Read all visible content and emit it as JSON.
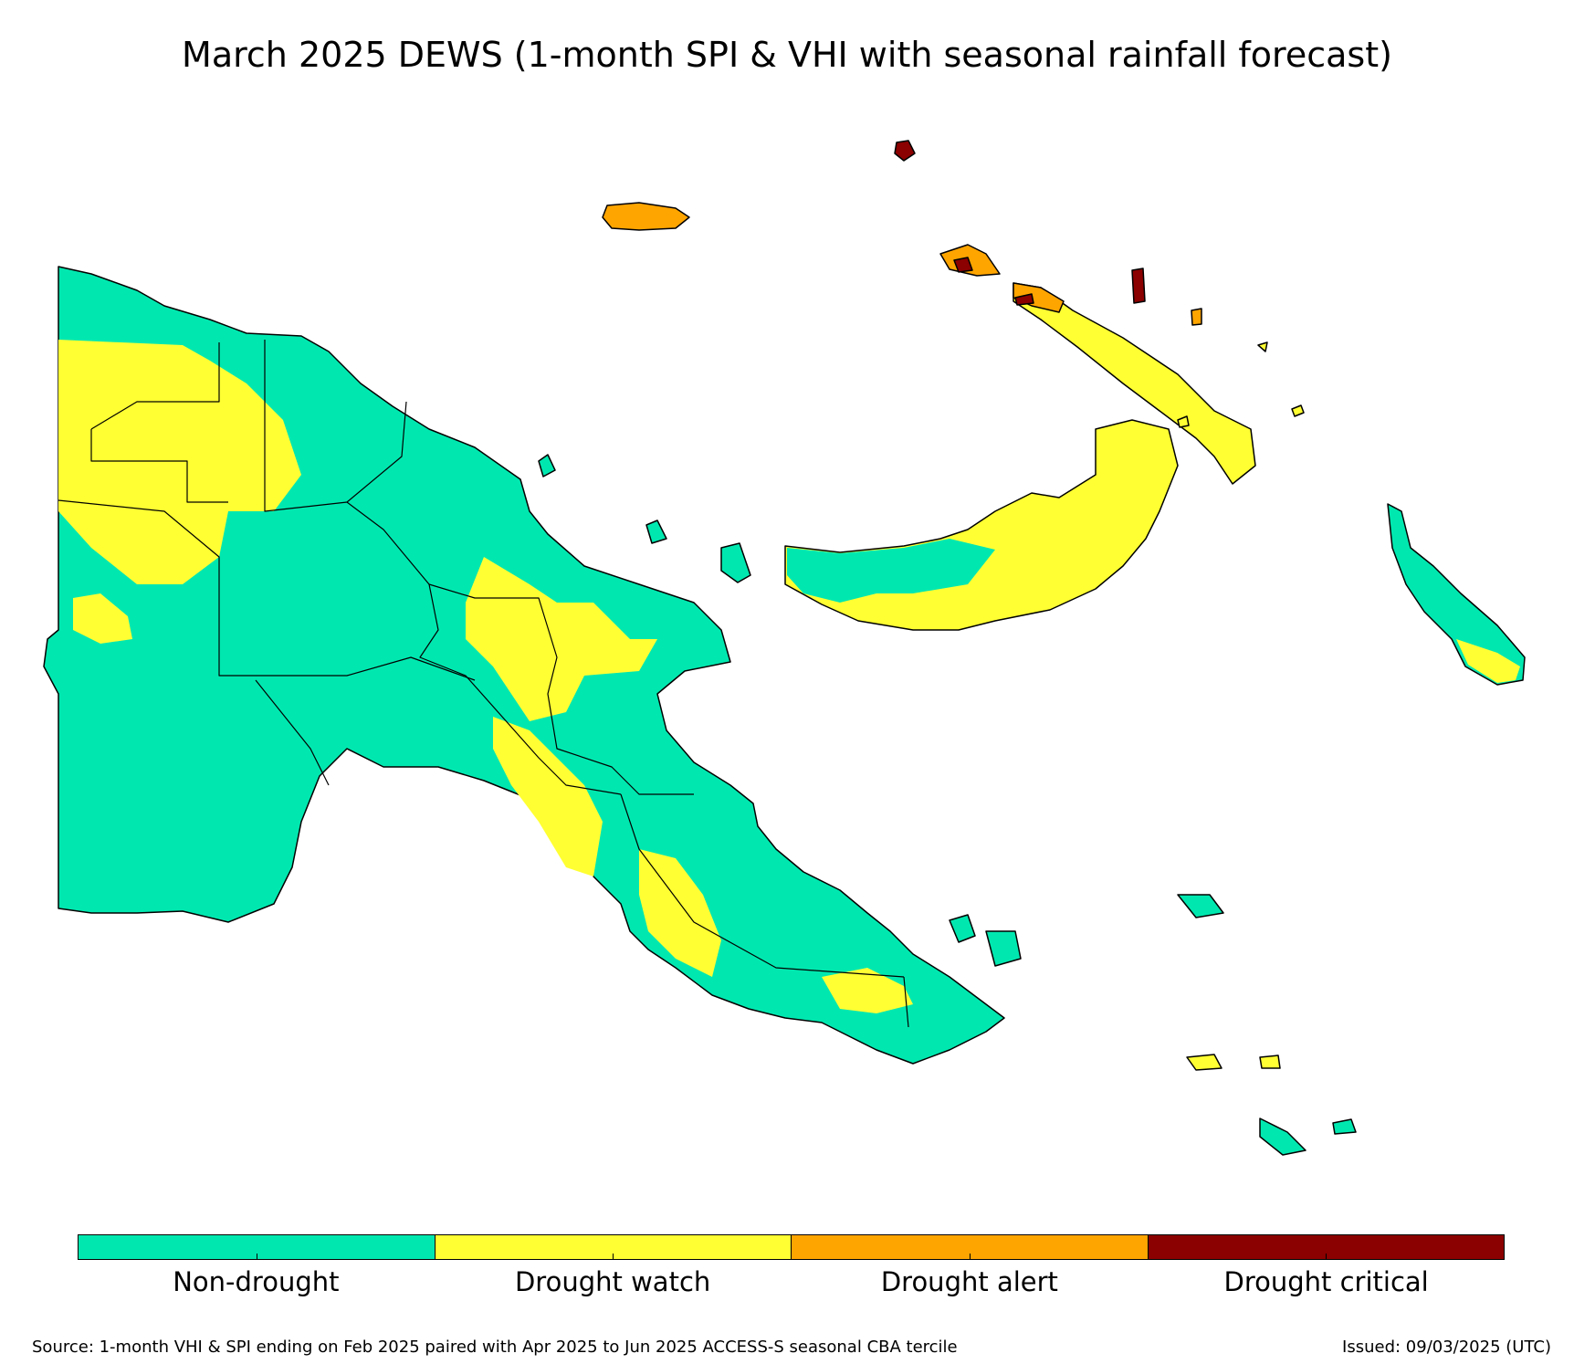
{
  "title": "March 2025 DEWS (1-month SPI & VHI with seasonal rainfall forecast)",
  "legend": {
    "categories": [
      {
        "label": "Non-drought",
        "color": "#00e8b0"
      },
      {
        "label": "Drought watch",
        "color": "#ffff33"
      },
      {
        "label": "Drought alert",
        "color": "#ffa500"
      },
      {
        "label": "Drought critical",
        "color": "#8b0000"
      }
    ]
  },
  "map": {
    "region": "Papua New Guinea",
    "colors": {
      "non_drought": "#00e8b0",
      "watch": "#ffff33",
      "alert": "#ffa500",
      "critical": "#8b0000",
      "border": "#000000"
    }
  },
  "footer": {
    "source": "Source: 1-month VHI & SPI ending on Feb 2025 paired with Apr 2025 to Jun 2025 ACCESS-S seasonal CBA tercile",
    "issued": "Issued: 09/03/2025 (UTC)"
  }
}
